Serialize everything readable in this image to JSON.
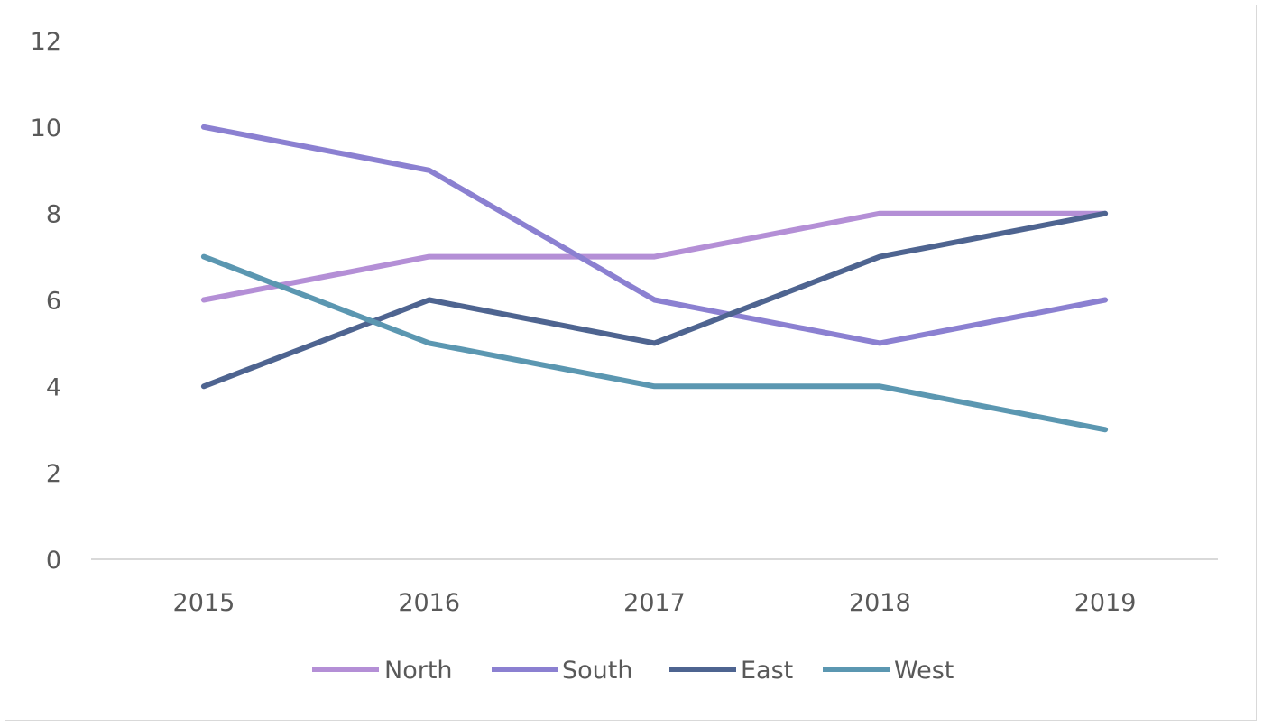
{
  "chart_data": {
    "type": "line",
    "title": "",
    "xlabel": "",
    "ylabel": "",
    "categories": [
      "2015",
      "2016",
      "2017",
      "2018",
      "2019"
    ],
    "ylim": [
      0,
      12
    ],
    "y_ticks": [
      0,
      2,
      4,
      6,
      8,
      10,
      12
    ],
    "grid": false,
    "legend_position": "bottom",
    "series": [
      {
        "name": "North",
        "values": [
          6,
          7,
          7,
          8,
          8
        ],
        "color": "#b48fd6"
      },
      {
        "name": "South",
        "values": [
          10,
          9,
          6,
          5,
          6
        ],
        "color": "#8b80d1"
      },
      {
        "name": "East",
        "values": [
          4,
          6,
          5,
          7,
          8
        ],
        "color": "#4e6490"
      },
      {
        "name": "West",
        "values": [
          7,
          5,
          4,
          4,
          3
        ],
        "color": "#5b97b1"
      }
    ]
  }
}
